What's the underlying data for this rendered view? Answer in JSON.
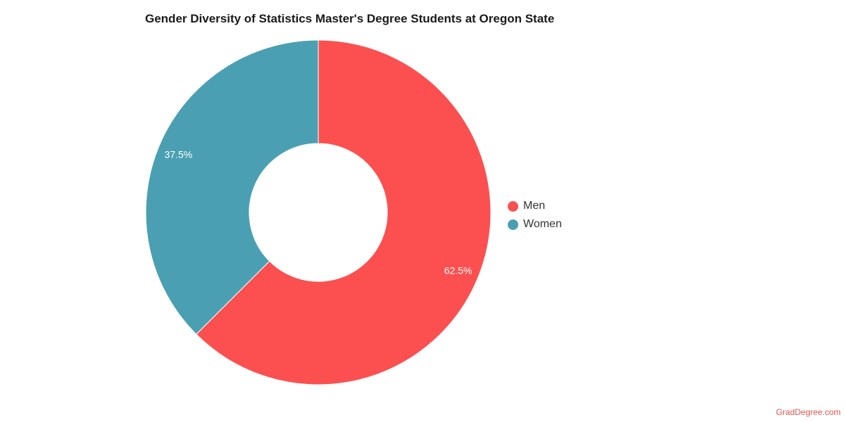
{
  "chart_data": {
    "type": "pie",
    "title": "Gender Diversity of Statistics Master's Degree Students at Oregon State",
    "donut": true,
    "categories": [
      "Men",
      "Women"
    ],
    "values": [
      62.5,
      37.5
    ],
    "data_labels": [
      "62.5%",
      "37.5%"
    ],
    "colors": [
      "#fc5050",
      "#4aa0b2"
    ],
    "legend_position": "right"
  },
  "legend": {
    "items": [
      {
        "label": "Men",
        "color": "#fc5050"
      },
      {
        "label": "Women",
        "color": "#4aa0b2"
      }
    ]
  },
  "watermark": "GradDegree.com"
}
